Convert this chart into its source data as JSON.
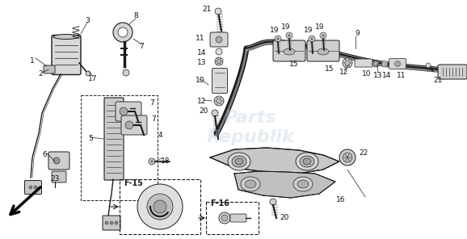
{
  "bg": "#ffffff",
  "ec": "#1a1a1a",
  "watermark": "Parts\nRepublik",
  "watermark_color": "#b8ccd8",
  "watermark_alpha": 0.35,
  "figsize": [
    5.78,
    2.96
  ],
  "dpi": 100
}
